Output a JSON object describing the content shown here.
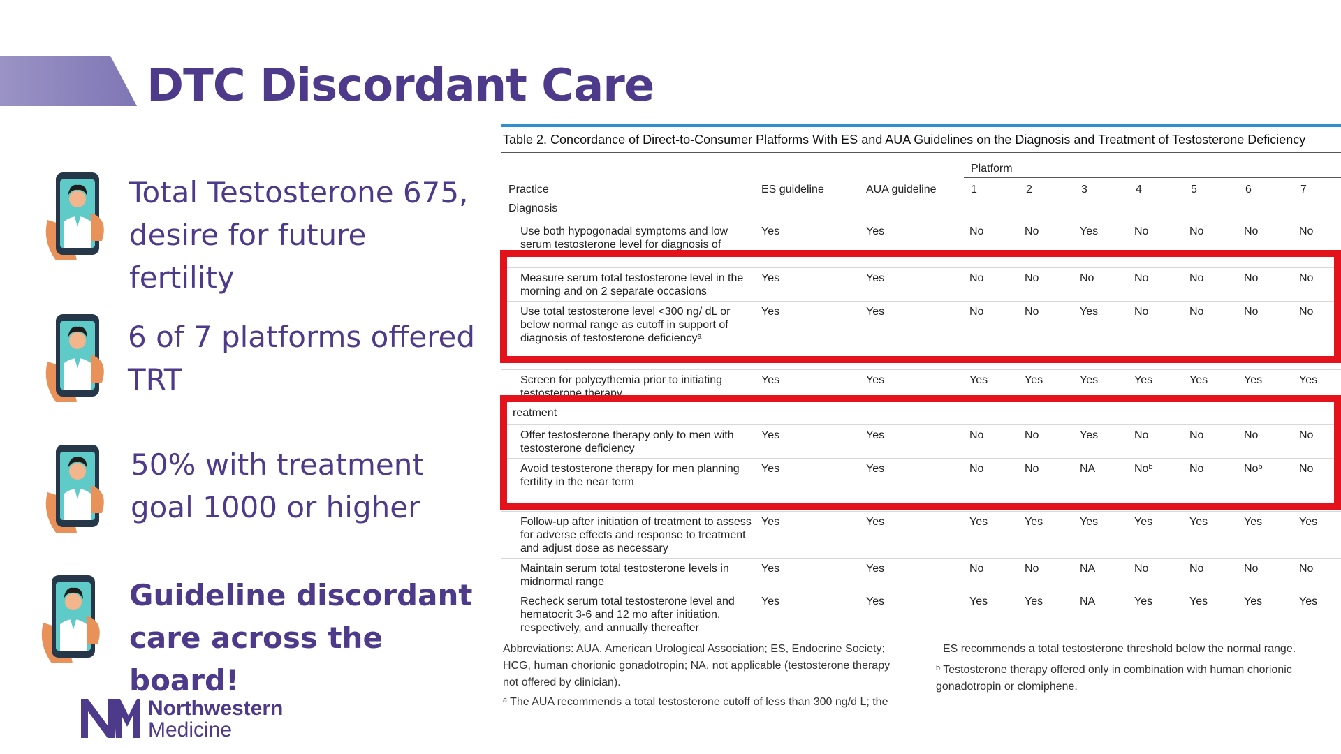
{
  "title": "DTC Discordant Care",
  "bullets": [
    {
      "line1": "Total Testosterone 675,",
      "line2": "desire for future fertility",
      "bold": false
    },
    {
      "line1": "6 of 7 platforms offered",
      "line2": "TRT",
      "bold": false
    },
    {
      "line1": "50% with treatment",
      "line2": "goal 1000 or higher",
      "bold": false
    },
    {
      "line1": "Guideline discordant",
      "line2": "care across the board!",
      "bold": true
    }
  ],
  "logo": {
    "line1": "Northwestern",
    "line2": "Medicine"
  },
  "table": {
    "caption": "Table 2. Concordance of Direct-to-Consumer Platforms With ES and AUA Guidelines on the Diagnosis and Treatment of Testosterone Deficiency",
    "headers": {
      "practice": "Practice",
      "es": "ES guideline",
      "aua": "AUA guideline",
      "platform": "Platform",
      "platforms": [
        "1",
        "2",
        "3",
        "4",
        "5",
        "6",
        "7"
      ]
    },
    "sections": {
      "diagnosis": "Diagnosis",
      "treatment": "reatment"
    },
    "rows": [
      {
        "practice": "Use both hypogonadal symptoms and low serum testosterone level for diagnosis of",
        "es": "Yes",
        "aua": "Yes",
        "p": [
          "No",
          "No",
          "Yes",
          "No",
          "No",
          "No",
          "No"
        ]
      },
      {
        "practice": "Measure serum total testosterone level in the morning and on 2 separate occasions",
        "es": "Yes",
        "aua": "Yes",
        "p": [
          "No",
          "No",
          "No",
          "No",
          "No",
          "No",
          "No"
        ]
      },
      {
        "practice": "Use total testosterone level <300 ng/ dL or below normal range as cutoff in support of diagnosis of testosterone deficiencyᵃ",
        "es": "Yes",
        "aua": "Yes",
        "p": [
          "No",
          "No",
          "Yes",
          "No",
          "No",
          "No",
          "No"
        ]
      },
      {
        "practice": "Screen for polycythemia prior to initiating testosterone therapy",
        "es": "Yes",
        "aua": "Yes",
        "p": [
          "Yes",
          "Yes",
          "Yes",
          "Yes",
          "Yes",
          "Yes",
          "Yes"
        ]
      },
      {
        "practice": "Offer testosterone therapy only to men with testosterone deficiency",
        "es": "Yes",
        "aua": "Yes",
        "p": [
          "No",
          "No",
          "Yes",
          "No",
          "No",
          "No",
          "No"
        ]
      },
      {
        "practice": "Avoid testosterone therapy for men planning fertility in the near term",
        "es": "Yes",
        "aua": "Yes",
        "p": [
          "No",
          "No",
          "NA",
          "Noᵇ",
          "No",
          "Noᵇ",
          "No"
        ]
      },
      {
        "practice": "Follow-up after initiation of treatment to assess for adverse effects and response to treatment and adjust dose as necessary",
        "es": "Yes",
        "aua": "Yes",
        "p": [
          "Yes",
          "Yes",
          "Yes",
          "Yes",
          "Yes",
          "Yes",
          "Yes"
        ]
      },
      {
        "practice": "Maintain serum total testosterone levels in midnormal range",
        "es": "Yes",
        "aua": "Yes",
        "p": [
          "No",
          "No",
          "NA",
          "No",
          "No",
          "No",
          "No"
        ]
      },
      {
        "practice": "Recheck serum total testosterone level and hematocrit 3-6 and 12 mo after initiation, respectively, and annually thereafter",
        "es": "Yes",
        "aua": "Yes",
        "p": [
          "Yes",
          "Yes",
          "NA",
          "Yes",
          "Yes",
          "Yes",
          "Yes"
        ]
      }
    ],
    "footnotes": {
      "abbr": "Abbreviations: AUA, American Urological Association; ES, Endocrine Society; HCG, human chorionic gonadotropin; NA, not applicable (testosterone therapy not offered by clinician).",
      "a": "ᵃ The AUA recommends a total testosterone cutoff of less than 300 ng/d L; the",
      "a_cont": "ES recommends a total testosterone threshold below the normal range.",
      "b": "ᵇ Testosterone therapy offered only in combination with human chorionic gonadotropin or clomiphene."
    }
  },
  "colors": {
    "title": "#4e3a8a",
    "highlight": "#e3121b",
    "rule": "#2f8fcf"
  }
}
